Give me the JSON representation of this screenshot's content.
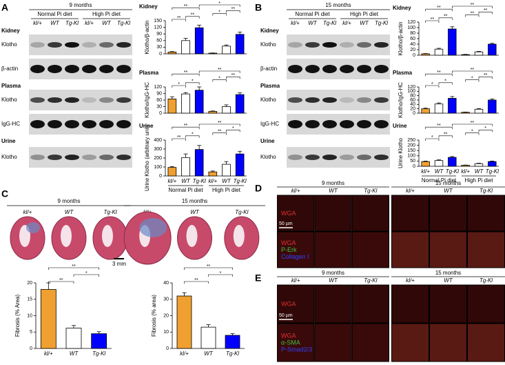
{
  "panels": {
    "A": {
      "label": "A",
      "header": "9 months",
      "groups": [
        "Normal Pi diet",
        "High Pi diet"
      ],
      "lanes": [
        "kl/+",
        "WT",
        "Tg-Kl",
        "kl/+",
        "WT",
        "Tg-Kl"
      ],
      "rows": [
        "Kidney",
        "Klotho",
        "β-actin",
        "Plasma",
        "Klotho",
        "IgG-HC",
        "Urine",
        "Klotho"
      ]
    },
    "B": {
      "label": "B",
      "header": "15 months",
      "groups": [
        "Normal Pi diet",
        "High Pi diet"
      ],
      "lanes": [
        "kl/+",
        "WT",
        "Tg-Kl",
        "kl/+",
        "WT",
        "Tg-Kl"
      ],
      "rows": [
        "Kidney",
        "Klotho",
        "β-actin",
        "Plasma",
        "Klotho",
        "IgG-HC",
        "Urine",
        "Klotho"
      ]
    },
    "C": {
      "label": "C",
      "columns": [
        "9 months",
        "15 months"
      ],
      "lanes": [
        "kl/+",
        "WT",
        "Tg-Kl"
      ],
      "scale": "3 mm"
    },
    "D": {
      "label": "D",
      "columns": [
        "9 months",
        "15 months"
      ],
      "lanes": [
        "kl/+",
        "WT",
        "Tg-Kl"
      ],
      "rows": [
        [
          "WGA"
        ],
        [
          "WGA",
          "P-Erk",
          "Collagen I"
        ]
      ],
      "scale": "50 µm"
    },
    "E": {
      "label": "E",
      "columns": [
        "9 months",
        "15 months"
      ],
      "lanes": [
        "kl/+",
        "WT",
        "Tg-Kl"
      ],
      "rows": [
        [
          "WGA"
        ],
        [
          "WGA",
          "α-SMA",
          "P-Smad2/3"
        ]
      ],
      "scale": "50 µm"
    }
  },
  "chart_data": [
    {
      "type": "bar",
      "title": "Kidney",
      "ylabel": "Klotho/β-actin",
      "values": [
        8,
        60,
        118,
        3,
        35,
        88
      ],
      "errors": [
        2,
        10,
        12,
        1,
        5,
        10
      ],
      "colors": [
        "#f0a030",
        "#ffffff",
        "#0000ff",
        "#f0a030",
        "#ffffff",
        "#0000ff"
      ],
      "ylim": [
        0,
        150
      ],
      "yticks": [
        0,
        30,
        60,
        90,
        120,
        150
      ],
      "significance": [
        {
          "pair": [
            0,
            1
          ],
          "label": "**"
        },
        {
          "pair": [
            1,
            2
          ],
          "label": "**"
        },
        {
          "pair": [
            3,
            4
          ],
          "label": "*"
        },
        {
          "pair": [
            4,
            5
          ],
          "label": "**"
        },
        {
          "pair": [
            0,
            2
          ],
          "label": "**"
        },
        {
          "pair": [
            2,
            5
          ],
          "label": "*"
        }
      ]
    },
    {
      "type": "bar",
      "title": "Plasma",
      "ylabel": "Klotho/IgG-HC",
      "values": [
        65,
        88,
        105,
        8,
        30,
        85
      ],
      "errors": [
        10,
        6,
        15,
        2,
        8,
        8
      ],
      "colors": [
        "#f0a030",
        "#ffffff",
        "#0000ff",
        "#f0a030",
        "#ffffff",
        "#0000ff"
      ],
      "ylim": [
        0,
        120
      ],
      "yticks": [
        0,
        30,
        60,
        90,
        120
      ],
      "significance": [
        {
          "pair": [
            0,
            1
          ],
          "label": "*"
        },
        {
          "pair": [
            1,
            2
          ],
          "label": "*"
        },
        {
          "pair": [
            3,
            4
          ],
          "label": "*"
        },
        {
          "pair": [
            4,
            5
          ],
          "label": "**"
        },
        {
          "pair": [
            0,
            2
          ],
          "label": "**"
        },
        {
          "pair": [
            2,
            5
          ],
          "label": "**"
        }
      ]
    },
    {
      "type": "bar",
      "title": "Urine",
      "ylabel": "Urine Klotho (arbitrary unit)",
      "values": [
        95,
        205,
        295,
        45,
        130,
        245
      ],
      "errors": [
        10,
        40,
        45,
        10,
        30,
        30
      ],
      "colors": [
        "#f0a030",
        "#ffffff",
        "#0000ff",
        "#f0a030",
        "#ffffff",
        "#0000ff"
      ],
      "ylim": [
        0,
        400
      ],
      "yticks": [
        0,
        100,
        200,
        300,
        400
      ],
      "categories": [
        "kl/+",
        "WT",
        "Tg-Kl",
        "kl/+",
        "WT",
        "Tg-Kl"
      ],
      "groups": [
        "Normal Pi diet",
        "High Pi diet"
      ],
      "significance": [
        {
          "pair": [
            0,
            1
          ],
          "label": "**"
        },
        {
          "pair": [
            1,
            2
          ],
          "label": "*"
        },
        {
          "pair": [
            3,
            4
          ],
          "label": "**"
        },
        {
          "pair": [
            4,
            5
          ],
          "label": "*"
        },
        {
          "pair": [
            0,
            2
          ],
          "label": "**"
        },
        {
          "pair": [
            2,
            5
          ],
          "label": "**"
        }
      ]
    },
    {
      "type": "bar",
      "title": "Kidney",
      "ylabel": "Klotho/β-actin",
      "values": [
        5,
        22,
        95,
        2,
        12,
        40
      ],
      "errors": [
        1,
        3,
        8,
        1,
        2,
        3
      ],
      "colors": [
        "#f0a030",
        "#ffffff",
        "#0000ff",
        "#f0a030",
        "#ffffff",
        "#0000ff"
      ],
      "ylim": [
        0,
        120
      ],
      "yticks": [
        0,
        20,
        40,
        60,
        80,
        100,
        120
      ],
      "significance": [
        {
          "pair": [
            0,
            1
          ],
          "label": "**"
        },
        {
          "pair": [
            1,
            2
          ],
          "label": "**"
        },
        {
          "pair": [
            3,
            4
          ],
          "label": "**"
        },
        {
          "pair": [
            4,
            5
          ],
          "label": "**"
        },
        {
          "pair": [
            0,
            2
          ],
          "label": "**"
        },
        {
          "pair": [
            2,
            5
          ],
          "label": "**"
        }
      ]
    },
    {
      "type": "bar",
      "title": "Plasma",
      "ylabel": "Klotho/IgG-HC",
      "values": [
        20,
        42,
        68,
        4,
        18,
        60
      ],
      "errors": [
        3,
        5,
        8,
        1,
        3,
        5
      ],
      "colors": [
        "#f0a030",
        "#ffffff",
        "#0000ff",
        "#f0a030",
        "#ffffff",
        "#0000ff"
      ],
      "ylim": [
        0,
        120
      ],
      "yticks": [
        0,
        20,
        40,
        60,
        80,
        100,
        120
      ],
      "significance": [
        {
          "pair": [
            0,
            1
          ],
          "label": "*"
        },
        {
          "pair": [
            1,
            2
          ],
          "label": "*"
        },
        {
          "pair": [
            3,
            4
          ],
          "label": "*"
        },
        {
          "pair": [
            4,
            5
          ],
          "label": "**"
        },
        {
          "pair": [
            0,
            2
          ],
          "label": "**"
        },
        {
          "pair": [
            2,
            5
          ],
          "label": "**"
        }
      ]
    },
    {
      "type": "bar",
      "title": "Urine",
      "ylabel": "Urine Klotho",
      "values": [
        45,
        55,
        85,
        10,
        25,
        45
      ],
      "errors": [
        5,
        6,
        8,
        2,
        4,
        5
      ],
      "colors": [
        "#f0a030",
        "#ffffff",
        "#0000ff",
        "#f0a030",
        "#ffffff",
        "#0000ff"
      ],
      "ylim": [
        0,
        250
      ],
      "yticks": [
        0,
        50,
        100,
        150,
        200,
        250
      ],
      "categories": [
        "kl/+",
        "WT",
        "Tg-Kl",
        "kl/+",
        "WT",
        "Tg-Kl"
      ],
      "groups": [
        "Normal Pi diet",
        "High Pi diet"
      ],
      "significance": [
        {
          "pair": [
            0,
            1
          ],
          "label": "*"
        },
        {
          "pair": [
            1,
            2
          ],
          "label": "**"
        },
        {
          "pair": [
            3,
            4
          ],
          "label": "*"
        },
        {
          "pair": [
            4,
            5
          ],
          "label": "*"
        },
        {
          "pair": [
            0,
            2
          ],
          "label": "**"
        },
        {
          "pair": [
            2,
            5
          ],
          "label": "**"
        }
      ]
    },
    {
      "type": "bar",
      "ylabel": "Fibrosis (% Area)",
      "values": [
        18,
        6.2,
        4.5
      ],
      "errors": [
        2,
        0.8,
        0.6
      ],
      "colors": [
        "#f0a030",
        "#ffffff",
        "#0000ff"
      ],
      "ylim": [
        0,
        20
      ],
      "yticks": [
        0,
        5,
        10,
        15,
        20
      ],
      "categories": [
        "kl/+",
        "WT",
        "Tg-Kl"
      ],
      "significance": [
        {
          "pair": [
            0,
            1
          ],
          "label": "**"
        },
        {
          "pair": [
            1,
            2
          ],
          "label": "*"
        },
        {
          "pair": [
            0,
            2
          ],
          "label": "**"
        }
      ]
    },
    {
      "type": "bar",
      "ylabel": "Fibrosis (% area)",
      "values": [
        32,
        13,
        8
      ],
      "errors": [
        2,
        1.5,
        1
      ],
      "colors": [
        "#f0a030",
        "#ffffff",
        "#0000ff"
      ],
      "ylim": [
        0,
        40
      ],
      "yticks": [
        0,
        10,
        20,
        30,
        40
      ],
      "categories": [
        "kl/+",
        "WT",
        "Tg-Kl"
      ],
      "significance": [
        {
          "pair": [
            0,
            1
          ],
          "label": "**"
        },
        {
          "pair": [
            1,
            2
          ],
          "label": "*"
        },
        {
          "pair": [
            0,
            2
          ],
          "label": "**"
        }
      ]
    }
  ]
}
